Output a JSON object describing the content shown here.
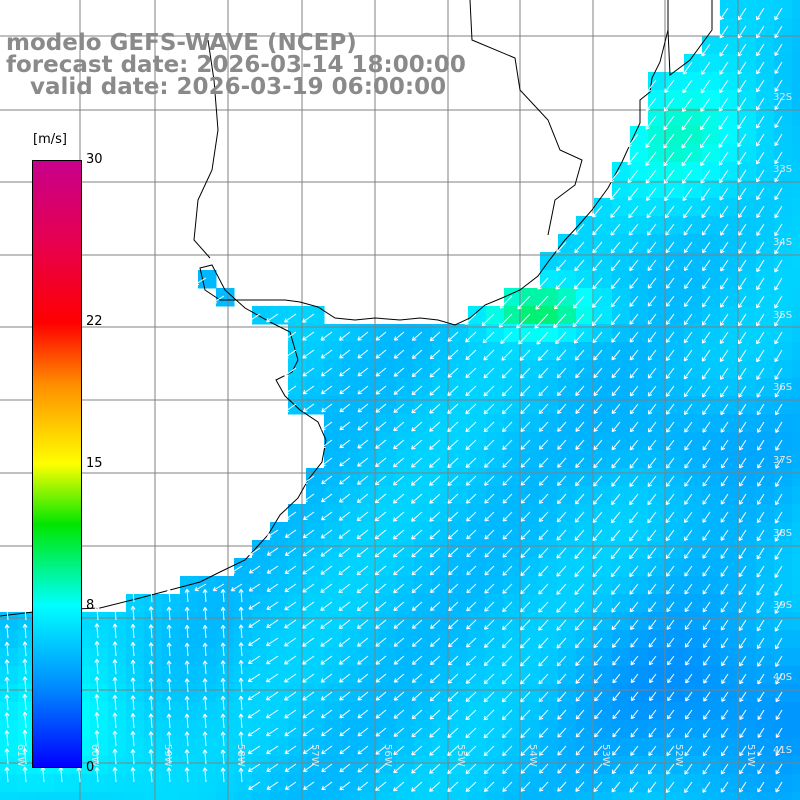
{
  "header": {
    "model_line": "modelo GEFS-WAVE (NCEP)",
    "forecast_line": "forecast date: 2026-03-14 18:00:00",
    "valid_line": "   valid date: 2026-03-19 06:00:00"
  },
  "colorbar": {
    "units": "[m/s]",
    "ticks": [
      {
        "label": "30",
        "value": 30
      },
      {
        "label": "22",
        "value": 22
      },
      {
        "label": "15",
        "value": 15
      },
      {
        "label": "8",
        "value": 8
      },
      {
        "label": "0",
        "value": 0
      }
    ]
  },
  "map": {
    "lat_labels": [
      "32S",
      "33S",
      "34S",
      "35S",
      "36S",
      "37S",
      "38S",
      "39S",
      "40S",
      "41S"
    ],
    "lon_labels": [
      "61W",
      "60W",
      "59W",
      "58W",
      "57W",
      "56W",
      "55W",
      "54W",
      "53W",
      "52W",
      "51W"
    ],
    "colors": {
      "land": "#ffffff",
      "grid": "#808080",
      "coast": "#000000",
      "arrow": "#ffffff"
    }
  }
}
